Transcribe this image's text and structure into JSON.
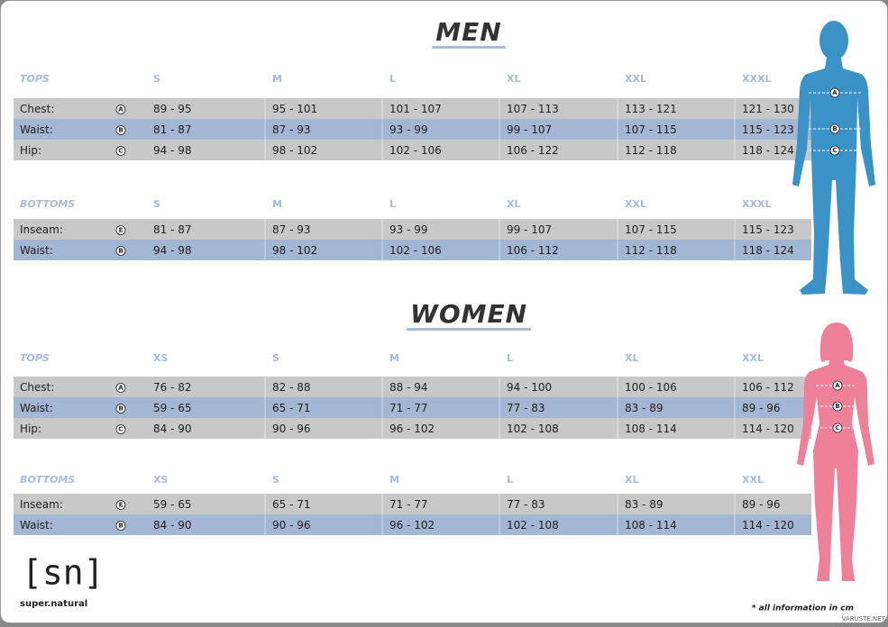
{
  "sections": [
    {
      "title": "MEN",
      "figure_markers": [
        "A",
        "B",
        "C"
      ],
      "tables": [
        {
          "label": "TOPS",
          "sizes": [
            "S",
            "M",
            "L",
            "XL",
            "XXL",
            "XXXL"
          ],
          "rows": [
            {
              "name": "Chest:",
              "marker": "A",
              "values": [
                "89 - 95",
                "95 - 101",
                "101 - 107",
                "107 - 113",
                "113 - 121",
                "121 - 130"
              ]
            },
            {
              "name": "Waist:",
              "marker": "B",
              "values": [
                "81 - 87",
                "87 - 93",
                "93 - 99",
                "99 - 107",
                "107 - 115",
                "115 - 123"
              ]
            },
            {
              "name": "Hip:",
              "marker": "C",
              "values": [
                "94 - 98",
                "98 - 102",
                "102 - 106",
                "106 - 122",
                "112 - 118",
                "118 - 124"
              ]
            }
          ]
        },
        {
          "label": "BOTTOMS",
          "sizes": [
            "S",
            "M",
            "L",
            "XL",
            "XXL",
            "XXXL"
          ],
          "rows": [
            {
              "name": "Inseam:",
              "marker": "E",
              "values": [
                "81 - 87",
                "87 - 93",
                "93 - 99",
                "99 - 107",
                "107 - 115",
                "115 - 123"
              ]
            },
            {
              "name": "Waist:",
              "marker": "B",
              "values": [
                "94 - 98",
                "98 - 102",
                "102 - 106",
                "106 - 112",
                "112 - 118",
                "118 - 124"
              ]
            }
          ]
        }
      ]
    },
    {
      "title": "WOMEN",
      "figure_markers": [
        "A",
        "B",
        "C"
      ],
      "tables": [
        {
          "label": "TOPS",
          "sizes": [
            "XS",
            "S",
            "M",
            "L",
            "XL",
            "XXL"
          ],
          "rows": [
            {
              "name": "Chest:",
              "marker": "A",
              "values": [
                "76 - 82",
                "82 - 88",
                "88 - 94",
                "94 - 100",
                "100 - 106",
                "106 - 112"
              ]
            },
            {
              "name": "Waist:",
              "marker": "B",
              "values": [
                "59 - 65",
                "65 - 71",
                "71 - 77",
                "77 - 83",
                "83 - 89",
                "89 - 96"
              ]
            },
            {
              "name": "Hip:",
              "marker": "C",
              "values": [
                "84 - 90",
                "90 - 96",
                "96 - 102",
                "102 - 108",
                "108 - 114",
                "114 - 120"
              ]
            }
          ]
        },
        {
          "label": "BOTTOMS",
          "sizes": [
            "XS",
            "S",
            "M",
            "L",
            "XL",
            "XXL"
          ],
          "rows": [
            {
              "name": "Inseam:",
              "marker": "E",
              "values": [
                "59 - 65",
                "65 - 71",
                "71 - 77",
                "77 - 83",
                "83 - 89",
                "89 - 96"
              ]
            },
            {
              "name": "Waist:",
              "marker": "B",
              "values": [
                "84 - 90",
                "90 - 96",
                "96 - 102",
                "102 - 108",
                "108 - 114",
                "114 - 120"
              ]
            }
          ]
        }
      ]
    }
  ],
  "logo": {
    "mark": "[sn]",
    "name": "super.natural"
  },
  "footnote": "* all information in cm",
  "watermark": "VARUSTE.NET"
}
